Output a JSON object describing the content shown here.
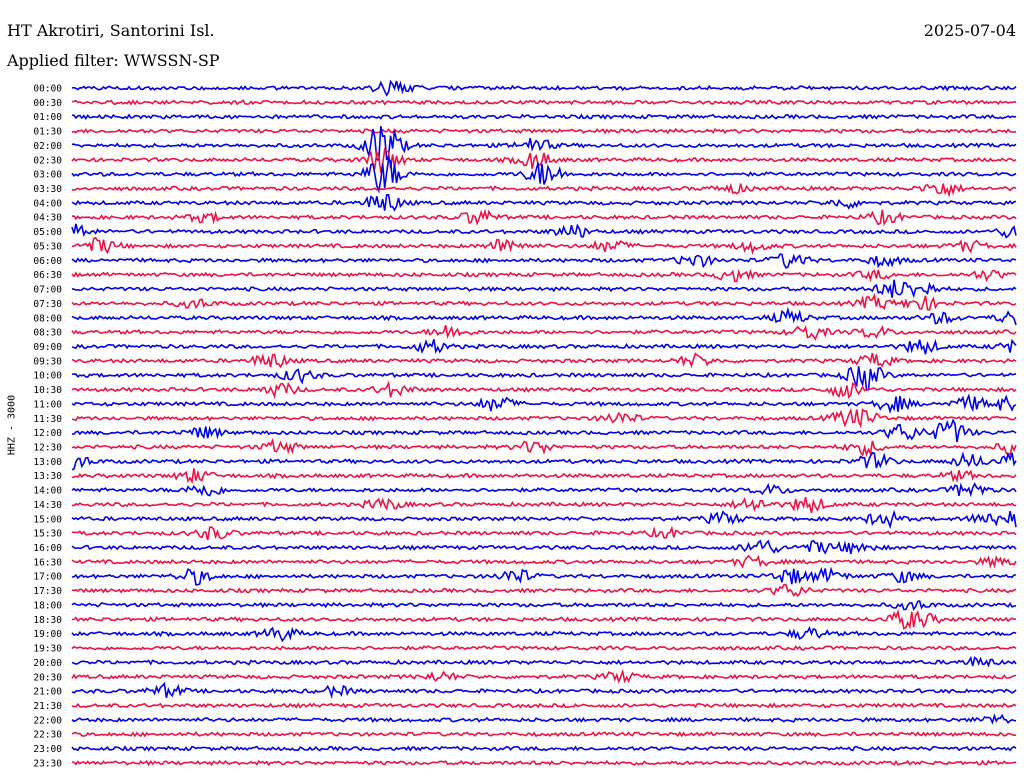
{
  "header": {
    "station": "HT Akrotiri, Santorini Isl.",
    "date": "2025-07-04",
    "filter": "Applied filter: WWSSN-SP"
  },
  "chart_data": {
    "type": "line",
    "title": "HT Akrotiri, Santorini Isl.",
    "ylabel": "HHZ - 3000",
    "xlabel": "",
    "grid": false,
    "trace_colors": [
      "#0000ee",
      "#ee1144"
    ],
    "rows": [
      {
        "label": "00:00",
        "events": [
          [
            0.34,
            1.8
          ]
        ]
      },
      {
        "label": "00:30",
        "events": []
      },
      {
        "label": "01:00",
        "events": []
      },
      {
        "label": "01:30",
        "events": []
      },
      {
        "label": "02:00",
        "events": [
          [
            0.33,
            6.0
          ],
          [
            0.49,
            1.6
          ]
        ]
      },
      {
        "label": "02:30",
        "events": [
          [
            0.33,
            3.0
          ],
          [
            0.49,
            2.0
          ]
        ]
      },
      {
        "label": "03:00",
        "events": [
          [
            0.33,
            4.5
          ],
          [
            0.5,
            3.0
          ]
        ]
      },
      {
        "label": "03:30",
        "events": [
          [
            0.92,
            1.8
          ],
          [
            0.7,
            1.0
          ]
        ]
      },
      {
        "label": "04:00",
        "events": [
          [
            0.33,
            2.5
          ],
          [
            0.82,
            1.0
          ]
        ]
      },
      {
        "label": "04:30",
        "events": [
          [
            0.43,
            1.8
          ],
          [
            0.86,
            1.5
          ],
          [
            0.14,
            1.0
          ]
        ]
      },
      {
        "label": "05:00",
        "events": [
          [
            0.0,
            2.0
          ],
          [
            0.53,
            1.6
          ],
          [
            1.0,
            1.6
          ]
        ]
      },
      {
        "label": "05:30",
        "events": [
          [
            0.03,
            1.8
          ],
          [
            0.46,
            1.8
          ],
          [
            0.57,
            1.4
          ],
          [
            0.72,
            1.2
          ],
          [
            0.95,
            1.2
          ]
        ]
      },
      {
        "label": "06:00",
        "events": [
          [
            0.66,
            1.5
          ],
          [
            0.76,
            1.8
          ],
          [
            0.86,
            1.2
          ]
        ]
      },
      {
        "label": "06:30",
        "events": [
          [
            0.7,
            1.5
          ],
          [
            0.85,
            1.0
          ],
          [
            0.97,
            1.0
          ]
        ]
      },
      {
        "label": "07:00",
        "events": [
          [
            0.87,
            2.0
          ],
          [
            1.1,
            1.6
          ]
        ]
      },
      {
        "label": "07:30",
        "events": [
          [
            0.85,
            1.5
          ],
          [
            1.1,
            1.6
          ],
          [
            0.13,
            1.0
          ]
        ]
      },
      {
        "label": "08:00",
        "events": [
          [
            0.76,
            1.6
          ],
          [
            1.2,
            1.8
          ],
          [
            0.92,
            1.2
          ]
        ]
      },
      {
        "label": "08:30",
        "events": [
          [
            0.4,
            1.6
          ],
          [
            0.78,
            1.8
          ],
          [
            1.05,
            1.2
          ]
        ]
      },
      {
        "label": "09:00",
        "events": [
          [
            0.38,
            1.5
          ],
          [
            0.9,
            1.8
          ],
          [
            1.0,
            1.4
          ]
        ]
      },
      {
        "label": "09:30",
        "events": [
          [
            0.21,
            1.8
          ],
          [
            0.66,
            1.4
          ],
          [
            1.05,
            1.6
          ]
        ]
      },
      {
        "label": "10:00",
        "events": [
          [
            0.24,
            1.5
          ],
          [
            0.84,
            1.6
          ],
          [
            1.04,
            1.8
          ]
        ]
      },
      {
        "label": "10:30",
        "events": [
          [
            0.22,
            1.5
          ],
          [
            0.34,
            1.6
          ],
          [
            1.02,
            1.8
          ]
        ]
      },
      {
        "label": "11:00",
        "events": [
          [
            0.45,
            1.8
          ],
          [
            0.87,
            1.8
          ],
          [
            0.95,
            1.6
          ],
          [
            1.19,
            1.5
          ]
        ]
      },
      {
        "label": "11:30",
        "events": [
          [
            0.58,
            1.4
          ],
          [
            0.82,
            1.5
          ],
          [
            1.04,
            1.4
          ]
        ]
      },
      {
        "label": "12:00",
        "events": [
          [
            0.14,
            1.3
          ],
          [
            0.88,
            2.0
          ],
          [
            0.93,
            1.8
          ],
          [
            1.13,
            1.2
          ]
        ]
      },
      {
        "label": "12:30",
        "events": [
          [
            0.22,
            1.5
          ],
          [
            0.49,
            1.5
          ],
          [
            0.84,
            1.6
          ],
          [
            1.2,
            1.8
          ]
        ]
      },
      {
        "label": "13:00",
        "events": [
          [
            0.0,
            1.8
          ],
          [
            1.05,
            1.8
          ],
          [
            1.15,
            1.6
          ],
          [
            1.2,
            2.0
          ]
        ]
      },
      {
        "label": "13:30",
        "events": [
          [
            0.13,
            1.5
          ],
          [
            1.14,
            1.0
          ]
        ]
      },
      {
        "label": "14:00",
        "events": [
          [
            0.14,
            1.6
          ],
          [
            0.95,
            1.8
          ],
          [
            0.74,
            1.0
          ]
        ]
      },
      {
        "label": "14:30",
        "events": [
          [
            0.33,
            1.4
          ],
          [
            0.72,
            1.6
          ],
          [
            0.78,
            2.0
          ]
        ]
      },
      {
        "label": "15:00",
        "events": [
          [
            0.69,
            1.4
          ],
          [
            0.86,
            1.8
          ],
          [
            1.0,
            1.6
          ],
          [
            1.17,
            1.4
          ]
        ]
      },
      {
        "label": "15:30",
        "events": [
          [
            0.15,
            1.5
          ],
          [
            0.63,
            1.0
          ]
        ]
      },
      {
        "label": "16:00",
        "events": [
          [
            0.73,
            2.0
          ],
          [
            0.79,
            1.4
          ],
          [
            1.03,
            1.3
          ]
        ]
      },
      {
        "label": "16:30",
        "events": [
          [
            0.72,
            1.2
          ],
          [
            0.98,
            1.0
          ]
        ]
      },
      {
        "label": "17:00",
        "events": [
          [
            0.13,
            1.8
          ],
          [
            0.47,
            1.6
          ],
          [
            0.76,
            1.8
          ],
          [
            0.8,
            1.5
          ],
          [
            0.88,
            1.3
          ]
        ]
      },
      {
        "label": "17:30",
        "events": [
          [
            0.76,
            1.5
          ]
        ]
      },
      {
        "label": "18:00",
        "events": [
          [
            1.09,
            1.0
          ]
        ]
      },
      {
        "label": "18:30",
        "events": [
          [
            0.9,
            1.3
          ],
          [
            1.08,
            1.6
          ]
        ]
      },
      {
        "label": "19:00",
        "events": [
          [
            0.22,
            1.6
          ],
          [
            0.78,
            1.3
          ]
        ]
      },
      {
        "label": "19:30",
        "events": []
      },
      {
        "label": "20:00",
        "events": [
          [
            0.96,
            1.0
          ]
        ]
      },
      {
        "label": "20:30",
        "events": [
          [
            0.39,
            1.0
          ],
          [
            0.58,
            1.2
          ]
        ]
      },
      {
        "label": "21:00",
        "events": [
          [
            0.1,
            1.5
          ],
          [
            0.28,
            1.0
          ]
        ]
      },
      {
        "label": "21:30",
        "events": []
      },
      {
        "label": "22:00",
        "events": [
          [
            1.18,
            1.0
          ]
        ]
      },
      {
        "label": "22:30",
        "events": []
      },
      {
        "label": "23:00",
        "events": []
      },
      {
        "label": "23:30",
        "events": []
      }
    ]
  }
}
